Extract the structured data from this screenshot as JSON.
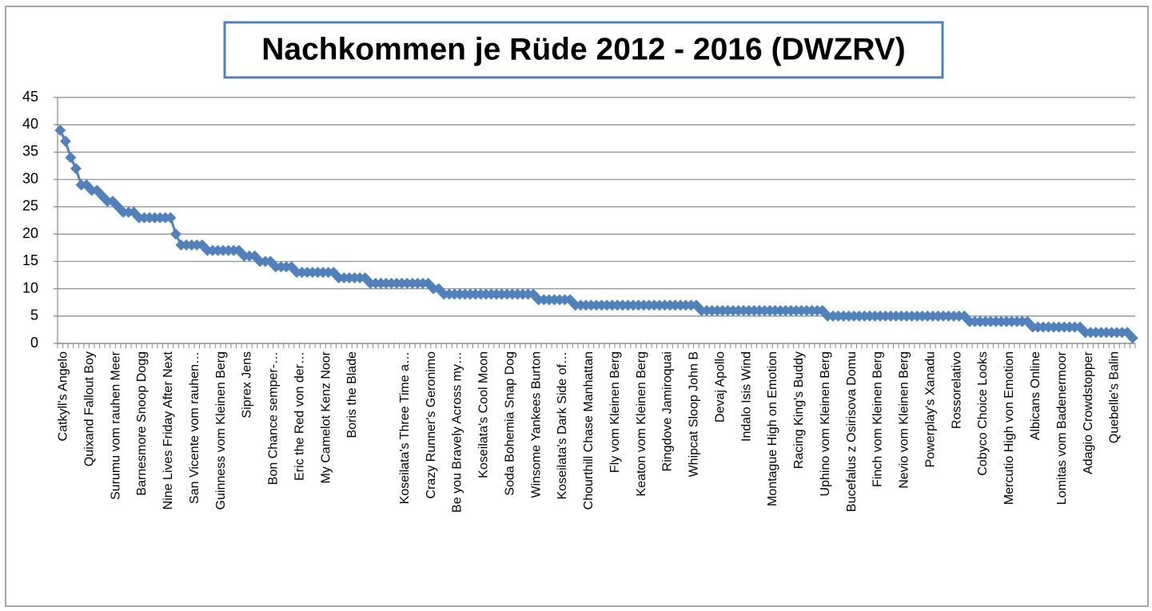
{
  "chart_data": {
    "type": "line",
    "title": "Nachkommen je Rüde 2012 - 2016 (DWZRV)",
    "categories": [
      "Catkyll's Angelo",
      null,
      null,
      null,
      null,
      "Quixand Fallout Boy",
      null,
      null,
      null,
      null,
      "Surumu vom rauhen Meer",
      null,
      null,
      null,
      null,
      "Barnesmore Snoop Dogg",
      null,
      null,
      null,
      null,
      "Nine Lives Friday After Next",
      null,
      null,
      null,
      null,
      "San Vicente vom rauhen…",
      null,
      null,
      null,
      null,
      "Guinness vom Kleinen Berg",
      null,
      null,
      null,
      null,
      "Siprex Jens",
      null,
      null,
      null,
      null,
      "Bon Chance semper-…",
      null,
      null,
      null,
      null,
      "Eric the Red von der…",
      null,
      null,
      null,
      null,
      "My Camelot Kenz Noor",
      null,
      null,
      null,
      null,
      "Boris the Blade",
      null,
      null,
      null,
      null,
      null,
      null,
      null,
      null,
      null,
      "Koseilata's Three Time a…",
      null,
      null,
      null,
      null,
      "Crazy Runner's Geronimo",
      null,
      null,
      null,
      null,
      "Be you Bravely Across my…",
      null,
      null,
      null,
      null,
      "Koseilata's Cool Moon",
      null,
      null,
      null,
      null,
      "Soda Bohemia Snap Dog",
      null,
      null,
      null,
      null,
      "Winsome Yankees Burton",
      null,
      null,
      null,
      null,
      "Koseilata's Dark Side of…",
      null,
      null,
      null,
      null,
      "Chourthill Chase Manhattan",
      null,
      null,
      null,
      null,
      "Fly vom Kleinen Berg",
      null,
      null,
      null,
      null,
      "Keaton vom Kleinen Berg",
      null,
      null,
      null,
      null,
      "Ringdove Jamiroquai",
      null,
      null,
      null,
      null,
      "Whipcat Sloop John B",
      null,
      null,
      null,
      null,
      "Devaj Apollo",
      null,
      null,
      null,
      null,
      "Indalo Isis Wind",
      null,
      null,
      null,
      null,
      "Montague High on Emotion",
      null,
      null,
      null,
      null,
      "Racing King's Buddy",
      null,
      null,
      null,
      null,
      "Uphino vom Kleinen Berg",
      null,
      null,
      null,
      null,
      "Bucefalus z Osirisova Domu",
      null,
      null,
      null,
      null,
      "Finch vom Kleinen Berg",
      null,
      null,
      null,
      null,
      "Nevio vom Kleinen Berg",
      null,
      null,
      null,
      null,
      "Powerplay's Xanadu",
      null,
      null,
      null,
      null,
      "Rossorelativo",
      null,
      null,
      null,
      null,
      "Cobyco Choice Looks",
      null,
      null,
      null,
      null,
      "Mercutio High von Emotion",
      null,
      null,
      null,
      null,
      "Albicans Online",
      null,
      null,
      null,
      null,
      "Lomitas vom Badenermoor",
      null,
      null,
      null,
      null,
      "Adagio Crowdstopper",
      null,
      null,
      null,
      null,
      "Quebelle's Balin",
      null,
      null,
      null,
      null
    ],
    "values": [
      39,
      37,
      34,
      32,
      29,
      29,
      28,
      28,
      27,
      26,
      26,
      25,
      24,
      24,
      24,
      23,
      23,
      23,
      23,
      23,
      23,
      23,
      20,
      18,
      18,
      18,
      18,
      18,
      17,
      17,
      17,
      17,
      17,
      17,
      17,
      16,
      16,
      16,
      15,
      15,
      15,
      14,
      14,
      14,
      14,
      13,
      13,
      13,
      13,
      13,
      13,
      13,
      13,
      12,
      12,
      12,
      12,
      12,
      12,
      11,
      11,
      11,
      11,
      11,
      11,
      11,
      11,
      11,
      11,
      11,
      11,
      10,
      10,
      9,
      9,
      9,
      9,
      9,
      9,
      9,
      9,
      9,
      9,
      9,
      9,
      9,
      9,
      9,
      9,
      9,
      9,
      8,
      8,
      8,
      8,
      8,
      8,
      8,
      7,
      7,
      7,
      7,
      7,
      7,
      7,
      7,
      7,
      7,
      7,
      7,
      7,
      7,
      7,
      7,
      7,
      7,
      7,
      7,
      7,
      7,
      7,
      7,
      6,
      6,
      6,
      6,
      6,
      6,
      6,
      6,
      6,
      6,
      6,
      6,
      6,
      6,
      6,
      6,
      6,
      6,
      6,
      6,
      6,
      6,
      6,
      6,
      5,
      5,
      5,
      5,
      5,
      5,
      5,
      5,
      5,
      5,
      5,
      5,
      5,
      5,
      5,
      5,
      5,
      5,
      5,
      5,
      5,
      5,
      5,
      5,
      5,
      5,
      5,
      4,
      4,
      4,
      4,
      4,
      4,
      4,
      4,
      4,
      4,
      4,
      4,
      3,
      3,
      3,
      3,
      3,
      3,
      3,
      3,
      3,
      3,
      2,
      2,
      2,
      2,
      2,
      2,
      2,
      2,
      2,
      1
    ],
    "color": "#4f81bd",
    "marker": "diamond",
    "ylim": [
      0,
      45
    ],
    "yticks": [
      0,
      5,
      10,
      15,
      20,
      25,
      30,
      35,
      40,
      45
    ],
    "grid": true
  }
}
